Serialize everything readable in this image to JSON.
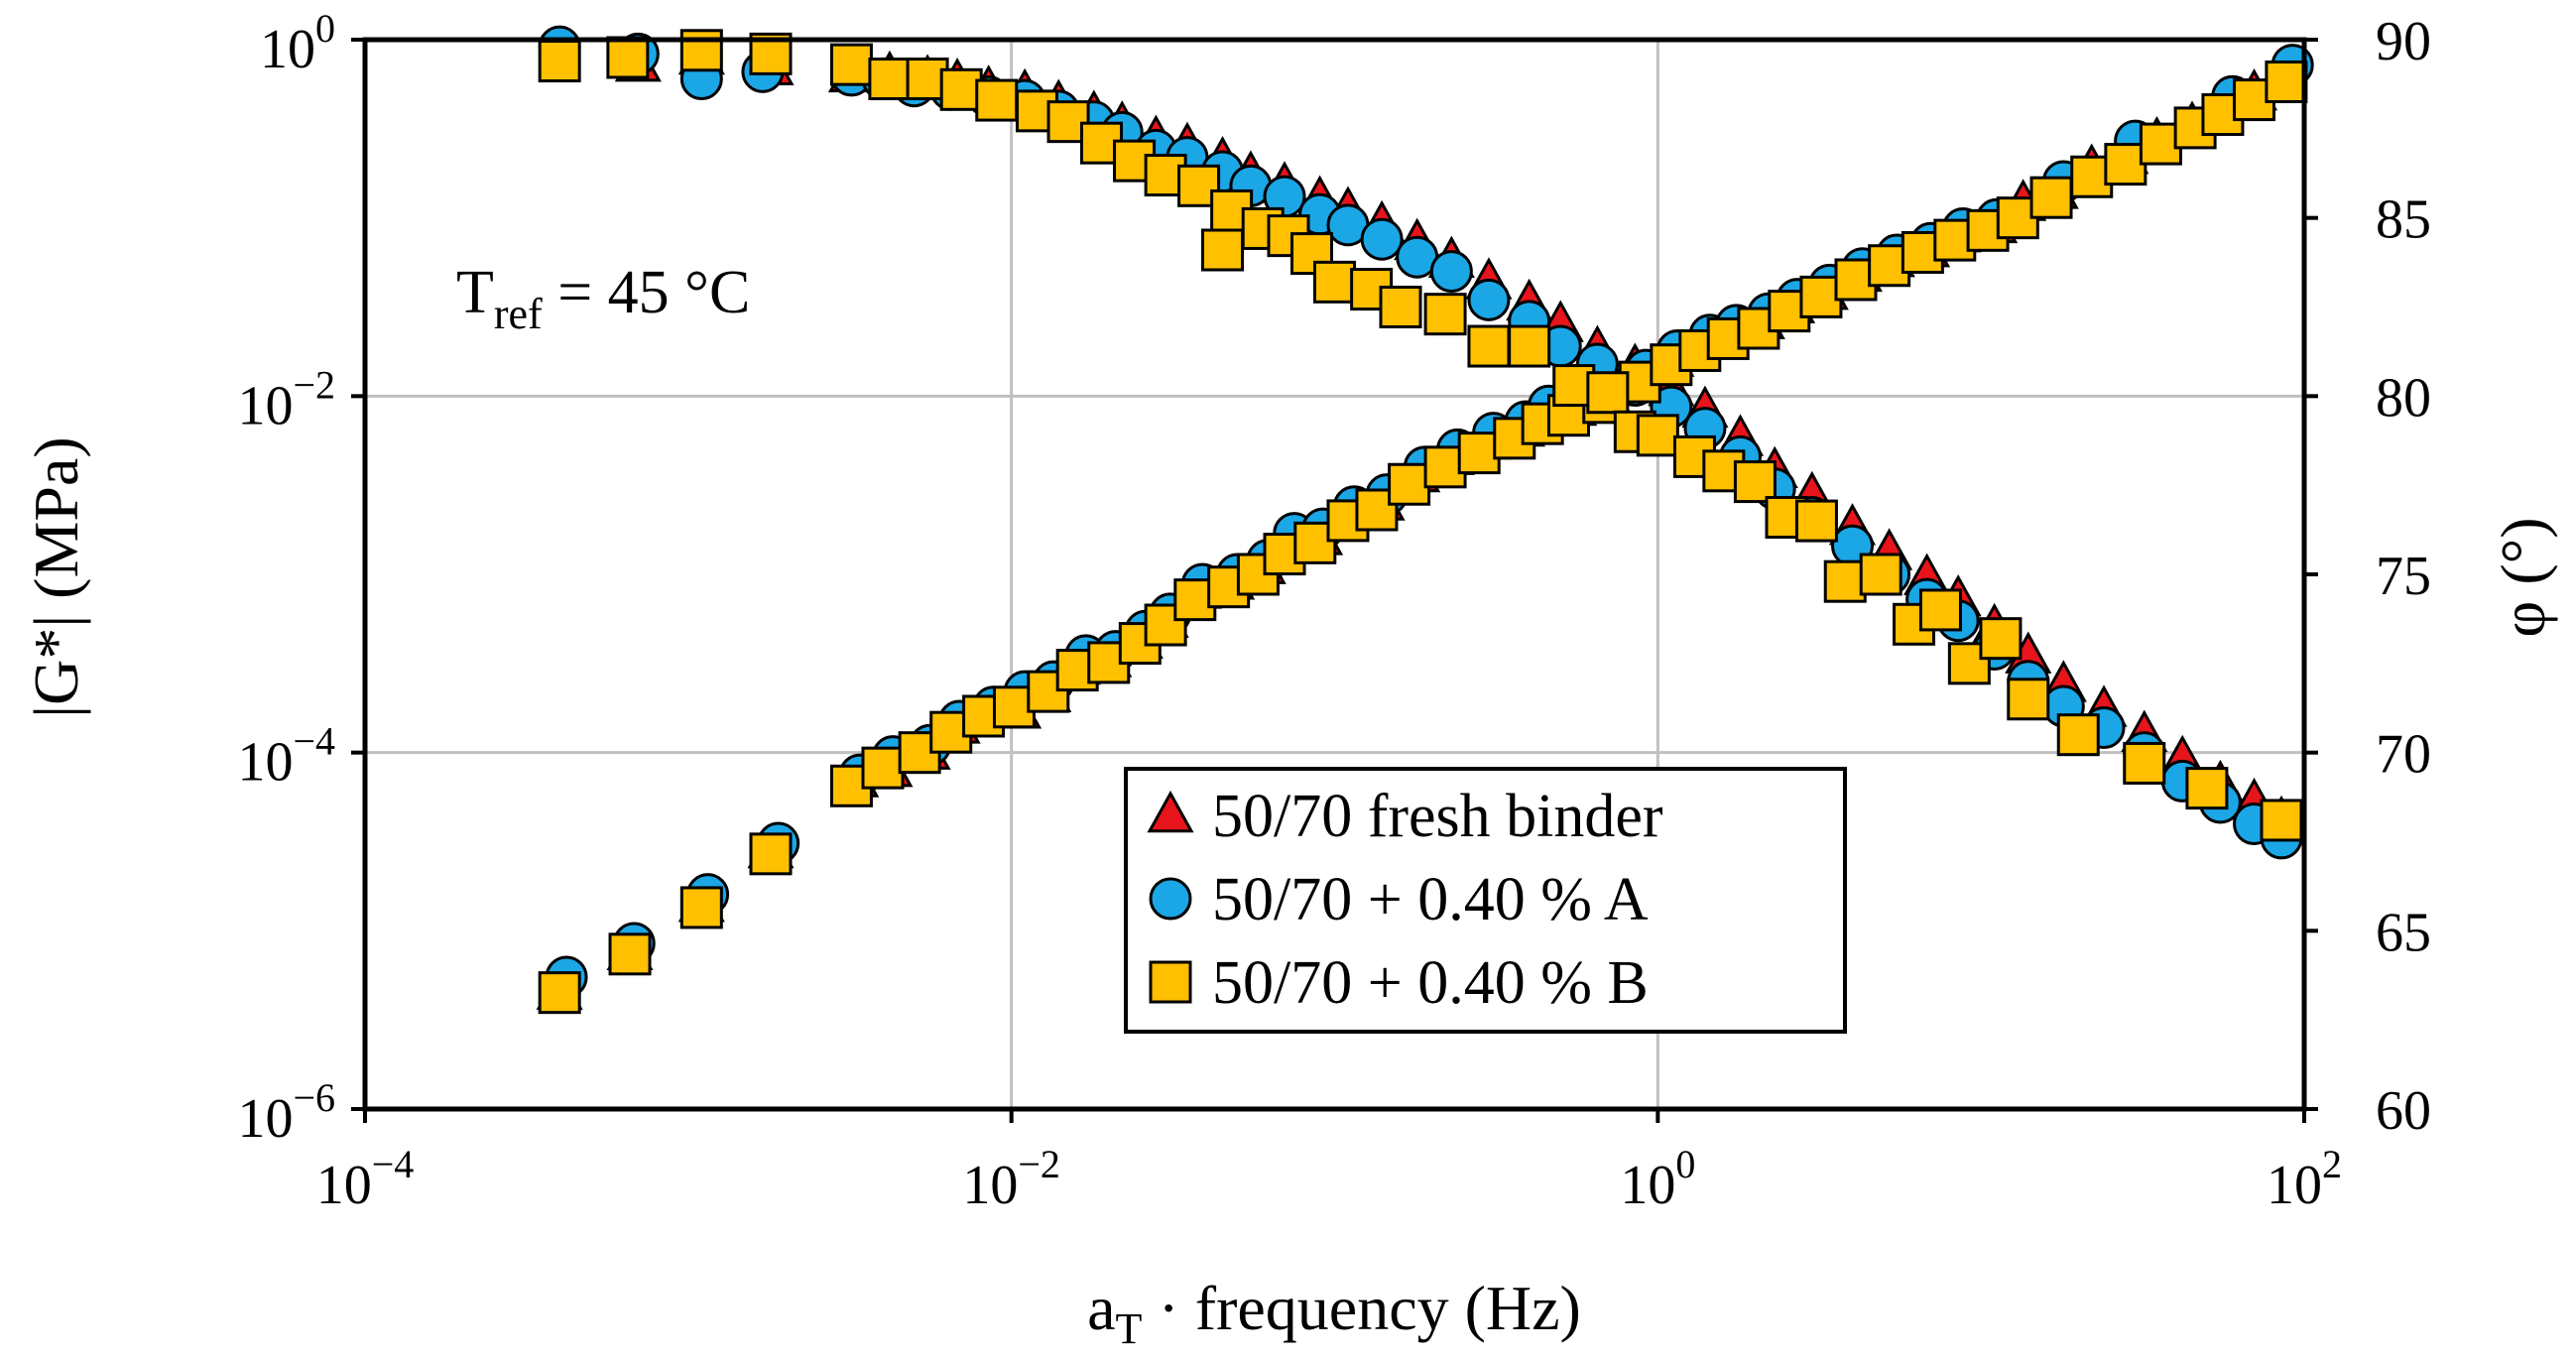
{
  "chart_data": {
    "type": "scatter",
    "title": "",
    "xlabel": {
      "main": "a",
      "sub": "T",
      "rest": " · frequency (Hz)"
    },
    "ylabel": "|G*| (MPa)",
    "y2label": "φ (°)",
    "xscale": "log",
    "yscale": "log",
    "xlim": [
      0.0001,
      100
    ],
    "ylim": [
      1e-06,
      1
    ],
    "y2lim": [
      60,
      90
    ],
    "grid": true,
    "legend_position": "center-bottom",
    "annotation": {
      "main": "T",
      "sub": "ref",
      "rest": " = 45 °C"
    },
    "x_ticks": [
      {
        "value": 0.0001,
        "base": "10",
        "exp": "−4"
      },
      {
        "value": 0.01,
        "base": "10",
        "exp": "−2"
      },
      {
        "value": 1,
        "base": "10",
        "exp": "0"
      },
      {
        "value": 100,
        "base": "10",
        "exp": "2"
      }
    ],
    "y_ticks": [
      {
        "value": 1,
        "base": "10",
        "exp": "0"
      },
      {
        "value": 0.01,
        "base": "10",
        "exp": "−2"
      },
      {
        "value": 0.0001,
        "base": "10",
        "exp": "−4"
      },
      {
        "value": 1e-06,
        "base": "10",
        "exp": "−6"
      }
    ],
    "y2_ticks": [
      {
        "value": 90,
        "label": "90"
      },
      {
        "value": 85,
        "label": "85"
      },
      {
        "value": 80,
        "label": "80"
      },
      {
        "value": 75,
        "label": "75"
      },
      {
        "value": 70,
        "label": "70"
      },
      {
        "value": 65,
        "label": "65"
      },
      {
        "value": 60,
        "label": "60"
      }
    ],
    "colors": {
      "fresh": "#e8141b",
      "A": "#1ba6e6",
      "B": "#ffc000",
      "edge": "#000000",
      "grid": "#c0c0c0"
    },
    "series": [
      {
        "name": "50/70 fresh binder",
        "marker": "triangle",
        "G": [
          [
            0.0004,
            4.5e-06
          ],
          [
            0.00066,
            7.5e-06
          ],
          [
            0.0011,
            1.4e-05
          ],
          [
            0.0018,
            2.8e-05
          ],
          [
            0.0033,
            7e-05
          ],
          [
            0.0042,
            8e-05
          ],
          [
            0.0055,
            0.0001
          ],
          [
            0.0068,
            0.00014
          ],
          [
            0.0085,
            0.00017
          ],
          [
            0.0105,
            0.00017
          ],
          [
            0.013,
            0.00021
          ],
          [
            0.016,
            0.0003
          ],
          [
            0.02,
            0.00033
          ],
          [
            0.025,
            0.00042
          ],
          [
            0.03,
            0.00055
          ],
          [
            0.038,
            0.0008
          ],
          [
            0.048,
            0.0009
          ],
          [
            0.06,
            0.0011
          ],
          [
            0.072,
            0.0015
          ],
          [
            0.09,
            0.0016
          ],
          [
            0.11,
            0.0022
          ],
          [
            0.14,
            0.0025
          ],
          [
            0.18,
            0.0036
          ],
          [
            0.23,
            0.0045
          ],
          [
            0.3,
            0.0055
          ],
          [
            0.38,
            0.0065
          ],
          [
            0.45,
            0.008
          ],
          [
            0.55,
            0.0085
          ],
          [
            0.7,
            0.01
          ],
          [
            0.9,
            0.013
          ],
          [
            1.1,
            0.016
          ],
          [
            1.4,
            0.02
          ],
          [
            1.7,
            0.023
          ],
          [
            2.1,
            0.026
          ],
          [
            2.6,
            0.032
          ],
          [
            3.3,
            0.038
          ],
          [
            4.2,
            0.048
          ],
          [
            5.3,
            0.058
          ],
          [
            6.8,
            0.066
          ],
          [
            8.5,
            0.08
          ],
          [
            11,
            0.09
          ],
          [
            13.5,
            0.12
          ],
          [
            17,
            0.14
          ],
          [
            22,
            0.19
          ],
          [
            28,
            0.22
          ],
          [
            35,
            0.27
          ],
          [
            45,
            0.33
          ],
          [
            55,
            0.4
          ],
          [
            70,
            0.5
          ],
          [
            85,
            0.62
          ]
        ],
        "phi": [
          [
            0.0007,
            89.3
          ],
          [
            0.0011,
            89.5
          ],
          [
            0.0018,
            89.2
          ],
          [
            0.0032,
            89.0
          ],
          [
            0.0042,
            89.0
          ],
          [
            0.0055,
            88.9
          ],
          [
            0.0068,
            88.8
          ],
          [
            0.0085,
            88.6
          ],
          [
            0.011,
            88.5
          ],
          [
            0.014,
            88.2
          ],
          [
            0.018,
            87.9
          ],
          [
            0.022,
            87.6
          ],
          [
            0.028,
            87.2
          ],
          [
            0.035,
            87.0
          ],
          [
            0.045,
            86.6
          ],
          [
            0.055,
            86.2
          ],
          [
            0.07,
            85.9
          ],
          [
            0.09,
            85.5
          ],
          [
            0.11,
            85.2
          ],
          [
            0.14,
            84.8
          ],
          [
            0.18,
            84.3
          ],
          [
            0.23,
            83.8
          ],
          [
            0.3,
            83.2
          ],
          [
            0.4,
            82.6
          ],
          [
            0.5,
            82.0
          ],
          [
            0.65,
            81.3
          ],
          [
            0.85,
            80.8
          ],
          [
            1.1,
            80.2
          ],
          [
            1.4,
            79.6
          ],
          [
            1.8,
            78.8
          ],
          [
            2.3,
            77.9
          ],
          [
            3.0,
            77.2
          ],
          [
            4.0,
            76.3
          ],
          [
            5.2,
            75.6
          ],
          [
            6.8,
            74.9
          ],
          [
            8.5,
            74.3
          ],
          [
            11,
            73.5
          ],
          [
            14,
            72.7
          ],
          [
            18,
            71.9
          ],
          [
            24,
            71.2
          ],
          [
            32,
            70.5
          ],
          [
            42,
            69.8
          ],
          [
            55,
            69.1
          ],
          [
            70,
            68.6
          ],
          [
            85,
            68.1
          ]
        ]
      },
      {
        "name": "50/70 + 0.40 % A",
        "marker": "circle",
        "G": [
          [
            0.00042,
            5.5e-06
          ],
          [
            0.00068,
            8.5e-06
          ],
          [
            0.00115,
            1.6e-05
          ],
          [
            0.0019,
            3.1e-05
          ],
          [
            0.0034,
            7.5e-05
          ],
          [
            0.0043,
            9.5e-05
          ],
          [
            0.0056,
            0.00011
          ],
          [
            0.0069,
            0.00015
          ],
          [
            0.0088,
            0.00018
          ],
          [
            0.011,
            0.00022
          ],
          [
            0.0135,
            0.00025
          ],
          [
            0.017,
            0.00035
          ],
          [
            0.021,
            0.00037
          ],
          [
            0.026,
            0.00048
          ],
          [
            0.031,
            0.0006
          ],
          [
            0.039,
            0.00088
          ],
          [
            0.05,
            0.001
          ],
          [
            0.062,
            0.0012
          ],
          [
            0.075,
            0.0017
          ],
          [
            0.092,
            0.0018
          ],
          [
            0.115,
            0.0024
          ],
          [
            0.145,
            0.0028
          ],
          [
            0.19,
            0.004
          ],
          [
            0.24,
            0.005
          ],
          [
            0.31,
            0.0062
          ],
          [
            0.39,
            0.0072
          ],
          [
            0.46,
            0.0088
          ],
          [
            0.56,
            0.0094
          ],
          [
            0.72,
            0.011
          ],
          [
            0.92,
            0.014
          ],
          [
            1.15,
            0.018
          ],
          [
            1.45,
            0.022
          ],
          [
            1.75,
            0.025
          ],
          [
            2.2,
            0.029
          ],
          [
            2.7,
            0.035
          ],
          [
            3.4,
            0.042
          ],
          [
            4.3,
            0.052
          ],
          [
            5.5,
            0.062
          ],
          [
            7,
            0.072
          ],
          [
            8.8,
            0.087
          ],
          [
            11.2,
            0.098
          ],
          [
            18,
            0.16
          ],
          [
            30,
            0.27
          ],
          [
            60,
            0.48
          ],
          [
            92,
            0.72
          ]
        ],
        "phi": [
          [
            0.0004,
            89.8
          ],
          [
            0.0007,
            89.6
          ],
          [
            0.0011,
            88.9
          ],
          [
            0.0017,
            89.1
          ],
          [
            0.0032,
            89.0
          ],
          [
            0.004,
            88.9
          ],
          [
            0.005,
            88.7
          ],
          [
            0.0065,
            88.6
          ],
          [
            0.0085,
            88.4
          ],
          [
            0.011,
            88.3
          ],
          [
            0.014,
            88.0
          ],
          [
            0.018,
            87.7
          ],
          [
            0.022,
            87.4
          ],
          [
            0.028,
            86.9
          ],
          [
            0.035,
            86.7
          ],
          [
            0.045,
            86.3
          ],
          [
            0.055,
            85.9
          ],
          [
            0.07,
            85.6
          ],
          [
            0.09,
            85.1
          ],
          [
            0.11,
            84.8
          ],
          [
            0.14,
            84.4
          ],
          [
            0.18,
            83.9
          ],
          [
            0.23,
            83.5
          ],
          [
            0.3,
            82.7
          ],
          [
            0.4,
            82.1
          ],
          [
            0.5,
            81.4
          ],
          [
            0.65,
            80.9
          ],
          [
            0.85,
            80.3
          ],
          [
            1.1,
            79.7
          ],
          [
            1.4,
            79.1
          ],
          [
            1.8,
            78.3
          ],
          [
            2.3,
            77.4
          ],
          [
            3.0,
            76.6
          ],
          [
            4.0,
            75.8
          ],
          [
            5.2,
            75.0
          ],
          [
            6.8,
            74.3
          ],
          [
            8.5,
            73.7
          ],
          [
            11,
            72.9
          ],
          [
            14,
            72.0
          ],
          [
            18,
            71.3
          ],
          [
            24,
            70.7
          ],
          [
            32,
            70.0
          ],
          [
            42,
            69.2
          ],
          [
            55,
            68.6
          ],
          [
            70,
            68.0
          ],
          [
            85,
            67.6
          ]
        ]
      },
      {
        "name": "50/70 + 0.40 % B",
        "marker": "square",
        "G": [
          [
            0.0004,
            4.5e-06
          ],
          [
            0.00066,
            7.4e-06
          ],
          [
            0.0011,
            1.35e-05
          ],
          [
            0.0018,
            2.7e-05
          ],
          [
            0.0032,
            6.5e-05
          ],
          [
            0.004,
            8.2e-05
          ],
          [
            0.0052,
            0.0001
          ],
          [
            0.0065,
            0.00013
          ],
          [
            0.0082,
            0.00016
          ],
          [
            0.0102,
            0.00018
          ],
          [
            0.013,
            0.00022
          ],
          [
            0.016,
            0.00029
          ],
          [
            0.02,
            0.00032
          ],
          [
            0.025,
            0.00041
          ],
          [
            0.03,
            0.00052
          ],
          [
            0.037,
            0.00072
          ],
          [
            0.047,
            0.00085
          ],
          [
            0.058,
            0.001
          ],
          [
            0.07,
            0.0013
          ],
          [
            0.087,
            0.0015
          ],
          [
            0.11,
            0.002
          ],
          [
            0.135,
            0.0023
          ],
          [
            0.17,
            0.0032
          ],
          [
            0.22,
            0.004
          ],
          [
            0.28,
            0.0048
          ],
          [
            0.36,
            0.0058
          ],
          [
            0.44,
            0.007
          ],
          [
            0.53,
            0.0078
          ],
          [
            0.68,
            0.0092
          ],
          [
            0.88,
            0.012
          ],
          [
            1.1,
            0.015
          ],
          [
            1.35,
            0.018
          ],
          [
            1.65,
            0.021
          ],
          [
            2.05,
            0.024
          ],
          [
            2.55,
            0.03
          ],
          [
            3.2,
            0.036
          ],
          [
            4.1,
            0.045
          ],
          [
            5.2,
            0.054
          ],
          [
            6.6,
            0.064
          ],
          [
            8.3,
            0.075
          ],
          [
            10.5,
            0.085
          ],
          [
            13,
            0.1
          ],
          [
            16.5,
            0.13
          ],
          [
            22,
            0.17
          ],
          [
            28,
            0.2
          ],
          [
            36,
            0.26
          ],
          [
            46,
            0.32
          ],
          [
            56,
            0.38
          ],
          [
            70,
            0.46
          ],
          [
            88,
            0.58
          ]
        ],
        "phi": [
          [
            0.0004,
            89.4
          ],
          [
            0.00065,
            89.5
          ],
          [
            0.0011,
            89.7
          ],
          [
            0.0018,
            89.6
          ],
          [
            0.0032,
            89.3
          ],
          [
            0.0042,
            88.9
          ],
          [
            0.0055,
            88.9
          ],
          [
            0.007,
            88.6
          ],
          [
            0.009,
            88.3
          ],
          [
            0.012,
            88.0
          ],
          [
            0.015,
            87.7
          ],
          [
            0.019,
            87.1
          ],
          [
            0.024,
            86.6
          ],
          [
            0.03,
            86.2
          ],
          [
            0.038,
            85.9
          ],
          [
            0.048,
            85.2
          ],
          [
            0.06,
            84.7
          ],
          [
            0.072,
            84.5
          ],
          [
            0.045,
            84.1
          ],
          [
            0.085,
            84.0
          ],
          [
            0.1,
            83.2
          ],
          [
            0.13,
            83.0
          ],
          [
            0.16,
            82.5
          ],
          [
            0.22,
            82.3
          ],
          [
            0.3,
            81.4
          ],
          [
            0.4,
            81.4
          ],
          [
            0.55,
            80.3
          ],
          [
            0.7,
            80.1
          ],
          [
            0.85,
            79.0
          ],
          [
            1.0,
            78.9
          ],
          [
            1.3,
            78.3
          ],
          [
            1.6,
            77.9
          ],
          [
            2.0,
            77.6
          ],
          [
            2.5,
            76.6
          ],
          [
            3.1,
            76.5
          ],
          [
            3.8,
            74.8
          ],
          [
            4.9,
            75.0
          ],
          [
            6.2,
            73.6
          ],
          [
            7.5,
            74.0
          ],
          [
            9.2,
            72.5
          ],
          [
            11.5,
            73.2
          ],
          [
            14,
            71.5
          ],
          [
            20,
            70.5
          ],
          [
            32,
            69.7
          ],
          [
            50,
            69.0
          ],
          [
            85,
            68.1
          ]
        ]
      }
    ]
  }
}
